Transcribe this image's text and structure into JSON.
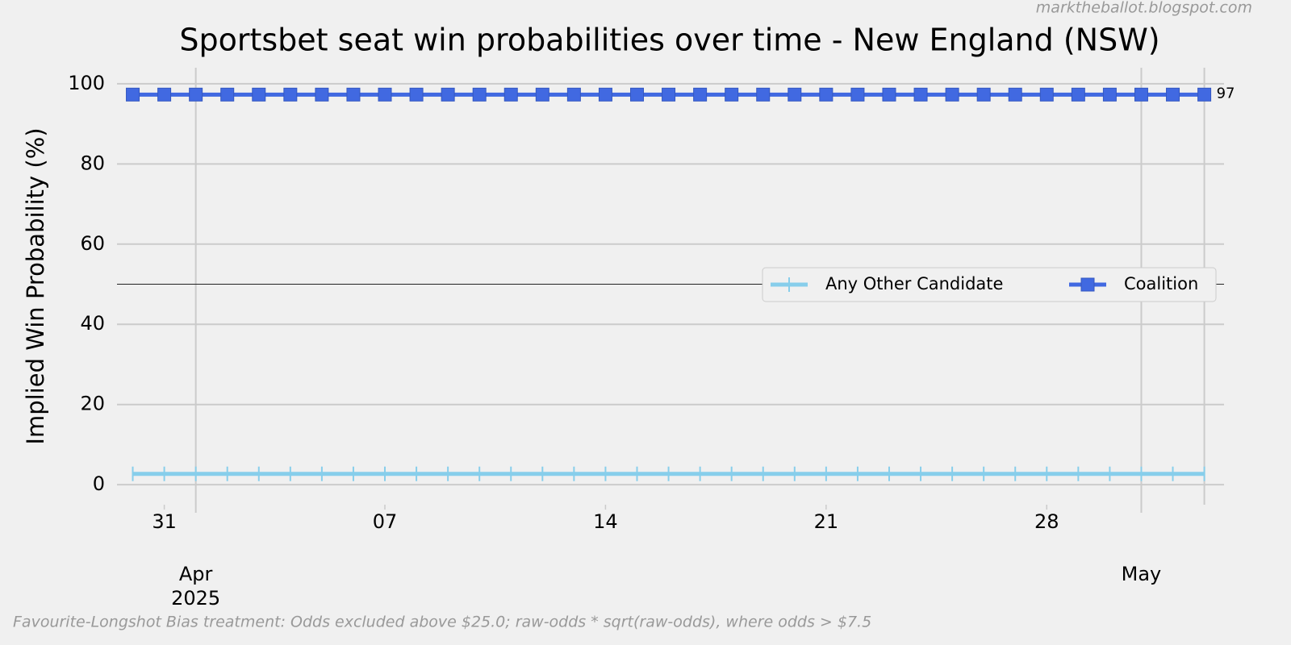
{
  "chart_data": {
    "type": "line",
    "title": "Sportsbet seat win probabilities over time - New England (NSW)",
    "ylabel": "Implied Win Probability (%)",
    "source": "marktheballot.blogspot.com",
    "footnote": "Favourite-Longshot Bias treatment: Odds excluded above $25.0; raw-odds * sqrt(raw-odds), where odds > $7.5",
    "x": [
      "2025-03-30",
      "2025-03-31",
      "2025-04-01",
      "2025-04-02",
      "2025-04-03",
      "2025-04-04",
      "2025-04-05",
      "2025-04-06",
      "2025-04-07",
      "2025-04-08",
      "2025-04-09",
      "2025-04-10",
      "2025-04-11",
      "2025-04-12",
      "2025-04-13",
      "2025-04-14",
      "2025-04-15",
      "2025-04-16",
      "2025-04-17",
      "2025-04-18",
      "2025-04-19",
      "2025-04-20",
      "2025-04-21",
      "2025-04-22",
      "2025-04-23",
      "2025-04-24",
      "2025-04-25",
      "2025-04-26",
      "2025-04-27",
      "2025-04-28",
      "2025-04-29",
      "2025-04-30",
      "2025-05-01",
      "2025-05-02",
      "2025-05-03"
    ],
    "series": [
      {
        "name": "Any Other Candidate",
        "color": "#87ceeb",
        "marker": "vline",
        "values": [
          2.7,
          2.7,
          2.7,
          2.7,
          2.7,
          2.7,
          2.7,
          2.7,
          2.7,
          2.7,
          2.7,
          2.7,
          2.7,
          2.7,
          2.7,
          2.7,
          2.7,
          2.7,
          2.7,
          2.7,
          2.7,
          2.7,
          2.7,
          2.7,
          2.7,
          2.7,
          2.7,
          2.7,
          2.7,
          2.7,
          2.7,
          2.7,
          2.7,
          2.7,
          2.7
        ]
      },
      {
        "name": "Coalition",
        "color": "#4169e1",
        "marker": "square",
        "values": [
          97.3,
          97.3,
          97.3,
          97.3,
          97.3,
          97.3,
          97.3,
          97.3,
          97.3,
          97.3,
          97.3,
          97.3,
          97.3,
          97.3,
          97.3,
          97.3,
          97.3,
          97.3,
          97.3,
          97.3,
          97.3,
          97.3,
          97.3,
          97.3,
          97.3,
          97.3,
          97.3,
          97.3,
          97.3,
          97.3,
          97.3,
          97.3,
          97.3,
          97.3,
          97.3
        ],
        "value_labels": [
          null,
          null,
          null,
          null,
          null,
          null,
          null,
          null,
          null,
          null,
          null,
          null,
          null,
          null,
          null,
          null,
          null,
          null,
          null,
          null,
          null,
          null,
          null,
          null,
          null,
          null,
          null,
          null,
          null,
          null,
          null,
          null,
          null,
          null,
          "97"
        ]
      }
    ],
    "xlim": [
      "2025-03-29T12:00:00Z",
      "2025-05-03T15:00:00Z"
    ],
    "xticks": [
      {
        "value": "2025-03-31",
        "label": "31"
      },
      {
        "value": "2025-04-07",
        "label": "07"
      },
      {
        "value": "2025-04-14",
        "label": "14"
      },
      {
        "value": "2025-04-21",
        "label": "21"
      },
      {
        "value": "2025-04-28",
        "label": "28"
      }
    ],
    "xticks_major": [
      {
        "value": "2025-04-01",
        "label": "Apr\n2025"
      },
      {
        "value": "2025-05-01",
        "label": "May"
      }
    ],
    "ylim": [
      -5,
      104
    ],
    "yticks": [
      0,
      20,
      40,
      60,
      80,
      100
    ],
    "hline": 50,
    "vline": "2025-05-03",
    "grid": true,
    "legend": "center right"
  }
}
